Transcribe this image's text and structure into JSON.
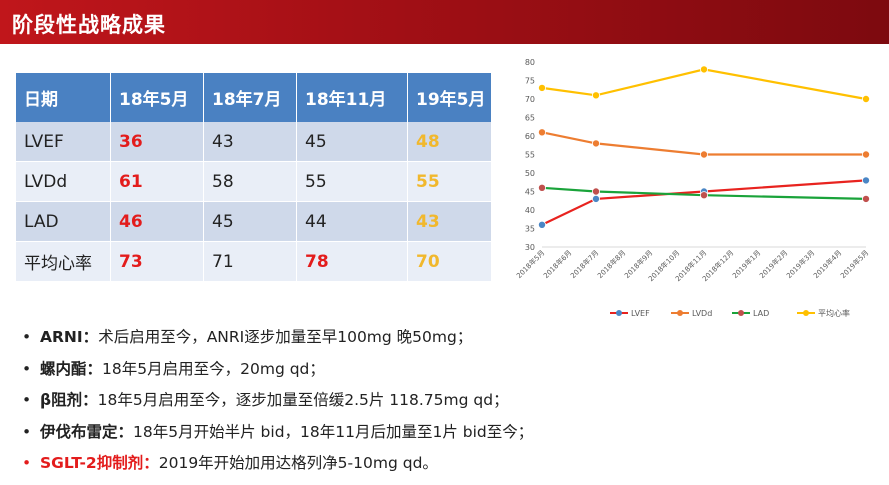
{
  "header": {
    "title": "阶段性战略成果"
  },
  "table": {
    "headers": [
      "日期",
      "18年5月",
      "18年7月",
      "18年11月",
      "19年5月"
    ],
    "rows": [
      [
        "LVEF",
        "36",
        "43",
        "45",
        "48"
      ],
      [
        "LVDd",
        "61",
        "58",
        "55",
        "55"
      ],
      [
        "LAD",
        "46",
        "45",
        "44",
        "43"
      ],
      [
        "平均心率",
        "73",
        "71",
        "78",
        "70"
      ]
    ],
    "colors": {
      "header_bg": "#4a81c2",
      "highlight_red": "#e31c1c",
      "highlight_gold": "#f1b82d"
    }
  },
  "notes": [
    {
      "bullet": "•",
      "term": "ARNI",
      "sep": "：",
      "text": "术后启用至今，ANRI逐步加量至早100mg 晚50mg；"
    },
    {
      "bullet": "•",
      "term": "螺内酯",
      "sep": "：",
      "text": "18年5月启用至今，20mg qd；"
    },
    {
      "bullet": "•",
      "term": "β阻剂",
      "sep": "：",
      "text": "18年5月启用至今，逐步加量至倍缓2.5片 118.75mg qd；"
    },
    {
      "bullet": "•",
      "term": "伊伐布雷定",
      "sep": "：",
      "text": "18年5月开始半片 bid，18年11月后加量至1片 bid至今；"
    },
    {
      "bullet": "•",
      "term": "SGLT-2抑制剂",
      "sep": "：",
      "text": "2019年开始加用达格列净5-10mg qd。"
    }
  ],
  "chart_data": {
    "type": "line",
    "categories": [
      "2018年5月",
      "2018年6月",
      "2018年7月",
      "2018年8月",
      "2018年9月",
      "2018年10月",
      "2018年11月",
      "2018年12月",
      "2019年1月",
      "2019年2月",
      "2019年3月",
      "2019年4月",
      "2019年5月"
    ],
    "ylim": [
      30,
      80
    ],
    "yticks": [
      30,
      35,
      40,
      45,
      50,
      55,
      60,
      65,
      70,
      75,
      80
    ],
    "grid": false,
    "legend_position": "bottom",
    "series": [
      {
        "name": "LVEF",
        "color": "#e8231f",
        "marker_color": "#4a86c5",
        "points": [
          [
            0,
            36
          ],
          [
            2,
            43
          ],
          [
            6,
            45
          ],
          [
            12,
            48
          ]
        ]
      },
      {
        "name": "LVDd",
        "color": "#ed7d31",
        "marker_color": "#ed7d31",
        "points": [
          [
            0,
            61
          ],
          [
            2,
            58
          ],
          [
            6,
            55
          ],
          [
            12,
            55
          ]
        ]
      },
      {
        "name": "LAD",
        "color": "#1aa33a",
        "marker_color": "#c0504d",
        "points": [
          [
            0,
            46
          ],
          [
            2,
            45
          ],
          [
            6,
            44
          ],
          [
            12,
            43
          ]
        ]
      },
      {
        "name": "平均心率",
        "color": "#ffc000",
        "marker_color": "#ffc000",
        "points": [
          [
            0,
            73
          ],
          [
            2,
            71
          ],
          [
            6,
            78
          ],
          [
            12,
            70
          ]
        ]
      }
    ]
  }
}
